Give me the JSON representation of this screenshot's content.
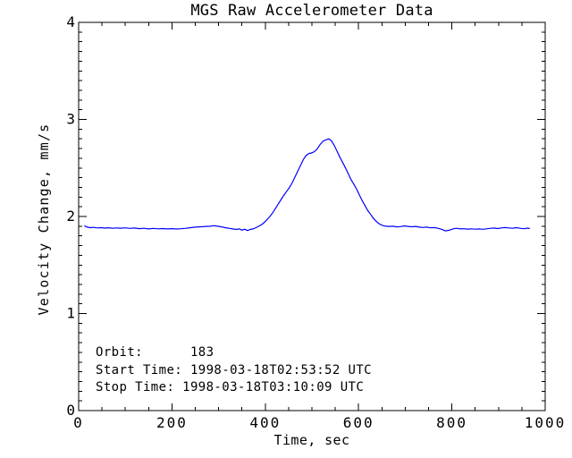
{
  "chart_data": {
    "type": "line",
    "title": "MGS Raw Accelerometer Data",
    "xlabel": "Time, sec",
    "ylabel": "Velocity Change, mm/s",
    "xlim": [
      0,
      1000
    ],
    "ylim": [
      0,
      4
    ],
    "x_major_ticks": [
      0,
      200,
      400,
      600,
      800,
      1000
    ],
    "x_minor_step": 50,
    "y_major_ticks": [
      0,
      1,
      2,
      3,
      4
    ],
    "y_minor_step": 0.1,
    "grid": false,
    "legend": "none",
    "line_color": "#0000ff",
    "axis_color": "#000000",
    "background_color": "#ffffff",
    "series": [
      {
        "name": "velocity-change",
        "x": [
          12,
          18,
          25,
          32,
          40,
          48,
          56,
          64,
          72,
          80,
          90,
          100,
          110,
          120,
          130,
          140,
          150,
          160,
          170,
          180,
          190,
          200,
          210,
          220,
          230,
          240,
          250,
          258,
          266,
          274,
          282,
          290,
          298,
          306,
          314,
          322,
          330,
          338,
          344,
          350,
          356,
          362,
          368,
          374,
          380,
          386,
          392,
          398,
          404,
          410,
          416,
          422,
          428,
          434,
          440,
          446,
          452,
          458,
          464,
          470,
          476,
          482,
          488,
          494,
          500,
          506,
          512,
          518,
          524,
          530,
          536,
          542,
          548,
          554,
          560,
          566,
          572,
          578,
          584,
          590,
          596,
          602,
          608,
          614,
          620,
          626,
          632,
          638,
          644,
          650,
          658,
          666,
          674,
          682,
          690,
          698,
          706,
          714,
          722,
          730,
          738,
          746,
          754,
          762,
          770,
          778,
          786,
          794,
          802,
          810,
          818,
          826,
          834,
          842,
          850,
          858,
          866,
          874,
          882,
          890,
          898,
          906,
          914,
          922,
          930,
          938,
          946,
          954,
          962,
          967
        ],
        "y": [
          1.905,
          1.89,
          1.885,
          1.888,
          1.882,
          1.885,
          1.88,
          1.884,
          1.878,
          1.882,
          1.879,
          1.883,
          1.877,
          1.881,
          1.875,
          1.878,
          1.872,
          1.877,
          1.873,
          1.876,
          1.872,
          1.875,
          1.871,
          1.874,
          1.878,
          1.885,
          1.89,
          1.893,
          1.895,
          1.898,
          1.9,
          1.905,
          1.9,
          1.893,
          1.885,
          1.878,
          1.872,
          1.866,
          1.872,
          1.86,
          1.868,
          1.855,
          1.866,
          1.872,
          1.885,
          1.9,
          1.915,
          1.94,
          1.97,
          2.0,
          2.04,
          2.085,
          2.13,
          2.175,
          2.22,
          2.26,
          2.3,
          2.35,
          2.41,
          2.47,
          2.53,
          2.59,
          2.63,
          2.65,
          2.655,
          2.67,
          2.7,
          2.745,
          2.775,
          2.79,
          2.8,
          2.78,
          2.73,
          2.67,
          2.61,
          2.555,
          2.5,
          2.44,
          2.38,
          2.33,
          2.28,
          2.22,
          2.16,
          2.11,
          2.06,
          2.02,
          1.98,
          1.95,
          1.925,
          1.91,
          1.9,
          1.898,
          1.9,
          1.893,
          1.896,
          1.903,
          1.898,
          1.894,
          1.898,
          1.89,
          1.887,
          1.89,
          1.883,
          1.886,
          1.878,
          1.868,
          1.852,
          1.858,
          1.872,
          1.878,
          1.872,
          1.874,
          1.87,
          1.873,
          1.869,
          1.872,
          1.868,
          1.873,
          1.877,
          1.881,
          1.876,
          1.882,
          1.886,
          1.882,
          1.878,
          1.885,
          1.878,
          1.874,
          1.88,
          1.876
        ]
      }
    ],
    "annotations": [
      {
        "label": "orbit",
        "text": "Orbit:      183"
      },
      {
        "label": "start-time",
        "text": "Start Time: 1998-03-18T02:53:52 UTC"
      },
      {
        "label": "stop-time",
        "text": "Stop Time: 1998-03-18T03:10:09 UTC"
      }
    ]
  }
}
